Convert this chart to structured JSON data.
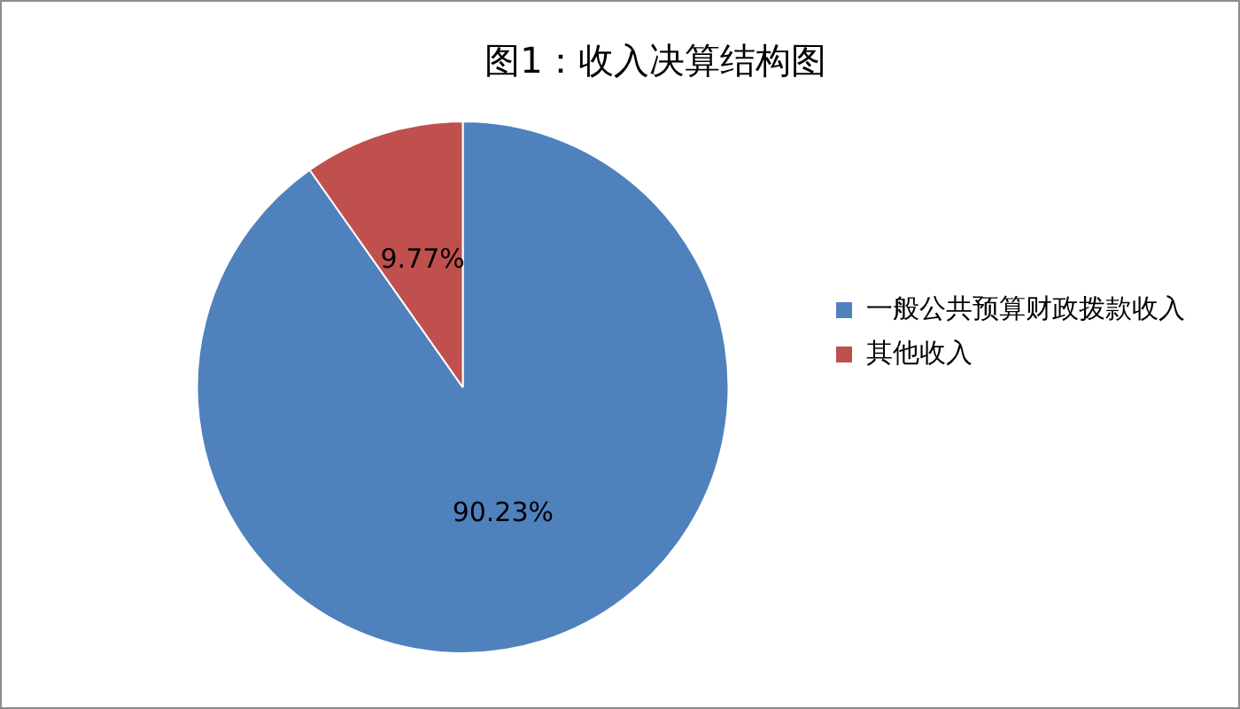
{
  "chart_data": {
    "type": "pie",
    "title": "图1：收入决算结构图",
    "categories": [
      "一般公共预算财政拨款收入",
      "其他收入"
    ],
    "values": [
      90.23,
      9.77
    ],
    "colors": [
      "#4f81bd",
      "#c0504d"
    ],
    "value_labels": [
      "90.23%",
      "9.77%"
    ],
    "legend": "right"
  }
}
